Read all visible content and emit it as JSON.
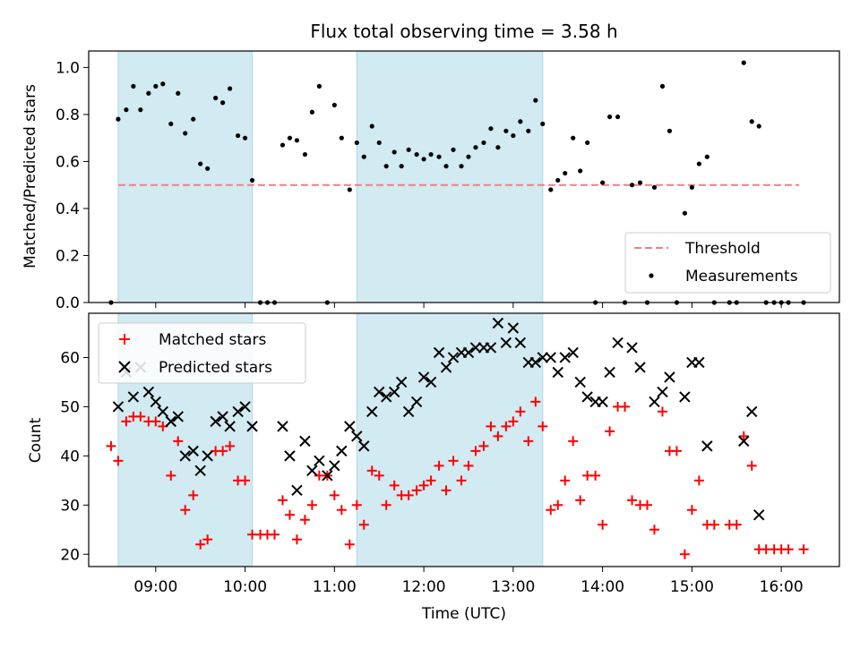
{
  "chart_data": {
    "title": "Flux total observing time = 3.58 h",
    "xlabel": "Time (UTC)",
    "x_unit": "hours UTC",
    "xlim": [
      8.25,
      16.65
    ],
    "x_ticks": [
      {
        "value": 9,
        "label": "09:00"
      },
      {
        "value": 10,
        "label": "10:00"
      },
      {
        "value": 11,
        "label": "11:00"
      },
      {
        "value": 12,
        "label": "12:00"
      },
      {
        "value": 13,
        "label": "13:00"
      },
      {
        "value": 14,
        "label": "14:00"
      },
      {
        "value": 15,
        "label": "15:00"
      },
      {
        "value": 16,
        "label": "16:00"
      }
    ],
    "shaded_intervals": [
      [
        8.58,
        10.08
      ],
      [
        11.25,
        13.33
      ]
    ],
    "shade_color": "#add8e6",
    "top_panel": {
      "type": "scatter",
      "ylabel": "Matched/Predicted stars",
      "ylim": [
        0,
        1.07
      ],
      "y_ticks": [
        "0.0",
        "0.2",
        "0.4",
        "0.6",
        "0.8",
        "1.0"
      ],
      "threshold": {
        "label": "Threshold",
        "value": 0.5,
        "x_range": [
          8.58,
          16.2
        ],
        "color": "#f08080"
      },
      "measurements": {
        "label": "Measurements",
        "color": "#000000",
        "x": [
          8.5,
          8.58,
          8.67,
          8.75,
          8.83,
          8.92,
          9.0,
          9.08,
          9.17,
          9.25,
          9.33,
          9.42,
          9.5,
          9.58,
          9.67,
          9.75,
          9.83,
          9.92,
          10.0,
          10.08,
          10.17,
          10.25,
          10.33,
          10.42,
          10.5,
          10.58,
          10.67,
          10.75,
          10.83,
          10.92,
          11.0,
          11.08,
          11.17,
          11.25,
          11.33,
          11.42,
          11.5,
          11.58,
          11.67,
          11.75,
          11.83,
          11.92,
          12.0,
          12.08,
          12.17,
          12.25,
          12.33,
          12.42,
          12.5,
          12.58,
          12.67,
          12.75,
          12.83,
          12.92,
          13.0,
          13.08,
          13.17,
          13.25,
          13.33,
          13.42,
          13.5,
          13.58,
          13.67,
          13.75,
          13.83,
          13.92,
          14.0,
          14.08,
          14.17,
          14.25,
          14.33,
          14.42,
          14.5,
          14.58,
          14.67,
          14.75,
          14.83,
          14.92,
          15.0,
          15.08,
          15.17,
          15.25,
          15.42,
          15.5,
          15.58,
          15.67,
          15.75,
          15.83,
          15.92,
          16.0,
          16.08,
          16.25
        ],
        "y": [
          0.0,
          0.78,
          0.82,
          0.92,
          0.82,
          0.89,
          0.92,
          0.93,
          0.76,
          0.89,
          0.72,
          0.78,
          0.59,
          0.57,
          0.87,
          0.85,
          0.91,
          0.71,
          0.7,
          0.52,
          0.0,
          0.0,
          0.0,
          0.67,
          0.7,
          0.69,
          0.63,
          0.81,
          0.92,
          0.0,
          0.84,
          0.7,
          0.48,
          0.68,
          0.62,
          0.75,
          0.68,
          0.58,
          0.64,
          0.58,
          0.65,
          0.63,
          0.61,
          0.63,
          0.62,
          0.58,
          0.65,
          0.58,
          0.62,
          0.66,
          0.68,
          0.74,
          0.66,
          0.73,
          0.71,
          0.77,
          0.73,
          0.86,
          0.76,
          0.48,
          0.52,
          0.55,
          0.7,
          0.56,
          0.68,
          0.0,
          0.51,
          0.79,
          0.79,
          0.0,
          0.5,
          0.51,
          0.0,
          0.49,
          0.92,
          0.73,
          0.0,
          0.38,
          0.49,
          0.59,
          0.62,
          0.0,
          0.0,
          0.0,
          1.02,
          0.77,
          0.75,
          0.0,
          0.0,
          0.0,
          0.0,
          0.0
        ]
      },
      "legend_position": "lower-right"
    },
    "bottom_panel": {
      "type": "scatter",
      "ylabel": "Count",
      "ylim": [
        17.5,
        69
      ],
      "y_ticks": [
        "20",
        "30",
        "40",
        "50",
        "60"
      ],
      "series": [
        {
          "name": "Matched stars",
          "marker": "plus",
          "color": "#ff0000",
          "x": [
            8.5,
            8.58,
            8.67,
            8.75,
            8.83,
            8.92,
            9.0,
            9.08,
            9.17,
            9.25,
            9.33,
            9.42,
            9.5,
            9.58,
            9.67,
            9.75,
            9.83,
            9.92,
            10.0,
            10.08,
            10.17,
            10.25,
            10.33,
            10.42,
            10.5,
            10.58,
            10.67,
            10.75,
            10.83,
            10.92,
            11.0,
            11.08,
            11.17,
            11.25,
            11.33,
            11.42,
            11.5,
            11.58,
            11.67,
            11.75,
            11.83,
            11.92,
            12.0,
            12.08,
            12.17,
            12.25,
            12.33,
            12.42,
            12.5,
            12.58,
            12.67,
            12.75,
            12.83,
            12.92,
            13.0,
            13.08,
            13.17,
            13.25,
            13.33,
            13.42,
            13.5,
            13.58,
            13.67,
            13.75,
            13.83,
            13.92,
            14.0,
            14.08,
            14.17,
            14.25,
            14.33,
            14.42,
            14.5,
            14.58,
            14.67,
            14.75,
            14.83,
            14.92,
            15.0,
            15.08,
            15.17,
            15.25,
            15.42,
            15.5,
            15.58,
            15.67,
            15.75,
            15.83,
            15.92,
            16.0,
            16.08,
            16.25
          ],
          "values": [
            42,
            39,
            47,
            48,
            48,
            47,
            47,
            46,
            36,
            43,
            29,
            32,
            22,
            23,
            41,
            41,
            42,
            35,
            35,
            24,
            24,
            24,
            24,
            31,
            28,
            23,
            27,
            30,
            36,
            36,
            32,
            29,
            22,
            30,
            26,
            37,
            36,
            30,
            34,
            32,
            32,
            33,
            34,
            35,
            38,
            33,
            39,
            35,
            38,
            41,
            42,
            46,
            44,
            46,
            47,
            49,
            43,
            51,
            46,
            29,
            30,
            35,
            43,
            31,
            36,
            36,
            26,
            45,
            50,
            50,
            31,
            30,
            30,
            25,
            49,
            41,
            41,
            20,
            29,
            35,
            26,
            26,
            26,
            26,
            44,
            38,
            21,
            21,
            21,
            21,
            21,
            21
          ]
        },
        {
          "name": "Predicted stars",
          "marker": "x",
          "color": "#000000",
          "x": [
            8.58,
            8.67,
            8.75,
            8.83,
            8.92,
            9.0,
            9.08,
            9.17,
            9.25,
            9.33,
            9.42,
            9.5,
            9.58,
            9.67,
            9.75,
            9.83,
            9.92,
            10.0,
            10.08,
            10.42,
            10.5,
            10.58,
            10.67,
            10.75,
            10.83,
            10.92,
            11.0,
            11.08,
            11.17,
            11.25,
            11.33,
            11.42,
            11.5,
            11.58,
            11.67,
            11.75,
            11.83,
            11.92,
            12.0,
            12.08,
            12.17,
            12.25,
            12.33,
            12.42,
            12.5,
            12.58,
            12.67,
            12.75,
            12.83,
            12.92,
            13.0,
            13.08,
            13.17,
            13.25,
            13.33,
            13.42,
            13.5,
            13.58,
            13.67,
            13.75,
            13.83,
            13.92,
            14.0,
            14.08,
            14.17,
            14.33,
            14.42,
            14.58,
            14.67,
            14.75,
            14.92,
            15.0,
            15.08,
            15.17,
            15.58,
            15.67,
            15.75
          ],
          "values": [
            50,
            57,
            52,
            58,
            53,
            51,
            49,
            47,
            48,
            40,
            41,
            37,
            40,
            47,
            48,
            46,
            49,
            50,
            46,
            46,
            40,
            33,
            43,
            37,
            39,
            36,
            38,
            41,
            46,
            44,
            42,
            49,
            53,
            52,
            53,
            55,
            49,
            51,
            56,
            55,
            61,
            58,
            60,
            61,
            61,
            62,
            62,
            62,
            67,
            63,
            66,
            63,
            59,
            59,
            60,
            60,
            57,
            60,
            61,
            55,
            52,
            51,
            51,
            57,
            63,
            62,
            58,
            51,
            53,
            56,
            52,
            59,
            59,
            42,
            43,
            49,
            28
          ]
        }
      ],
      "legend_position": "upper-left"
    }
  }
}
